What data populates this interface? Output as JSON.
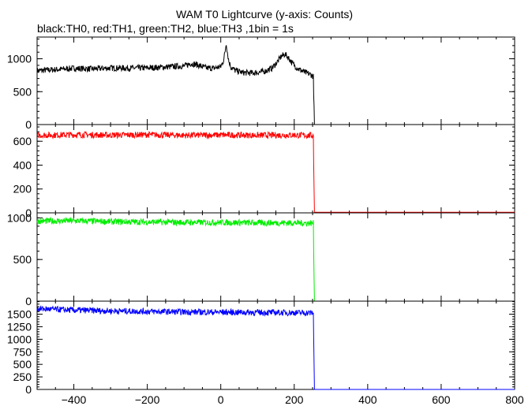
{
  "chart_data": {
    "type": "line",
    "title": "WAM T0 Lightcurve (y-axis: Counts)",
    "subtitle": "black:TH0, red:TH1, green:TH2, blue:TH3 ,1bin = 1s",
    "x_range": [
      -500,
      800
    ],
    "x_ticks": [
      -400,
      -200,
      0,
      200,
      400,
      600,
      800
    ],
    "x_tick_labels": [
      "−400",
      "−200",
      "0",
      "200",
      "400",
      "600",
      "800"
    ],
    "panels": [
      {
        "name": "TH0",
        "color": "#000000",
        "ylim": [
          0,
          1330
        ],
        "y_ticks": [
          0,
          500,
          1000
        ],
        "y_tick_labels": [
          "0",
          "500",
          "1000"
        ],
        "points": [
          [
            -500,
            820
          ],
          [
            -450,
            835
          ],
          [
            -400,
            855
          ],
          [
            -350,
            845
          ],
          [
            -300,
            860
          ],
          [
            -250,
            858
          ],
          [
            -200,
            860
          ],
          [
            -150,
            875
          ],
          [
            -100,
            890
          ],
          [
            -80,
            930
          ],
          [
            -60,
            900
          ],
          [
            -40,
            860
          ],
          [
            -20,
            855
          ],
          [
            0,
            880
          ],
          [
            8,
            980
          ],
          [
            12,
            1120
          ],
          [
            15,
            1240
          ],
          [
            18,
            1100
          ],
          [
            22,
            960
          ],
          [
            28,
            870
          ],
          [
            40,
            820
          ],
          [
            60,
            790
          ],
          [
            80,
            785
          ],
          [
            100,
            790
          ],
          [
            120,
            810
          ],
          [
            140,
            860
          ],
          [
            155,
            960
          ],
          [
            165,
            1040
          ],
          [
            175,
            1070
          ],
          [
            185,
            1010
          ],
          [
            195,
            930
          ],
          [
            210,
            850
          ],
          [
            230,
            790
          ],
          [
            245,
            760
          ],
          [
            252,
            730
          ],
          [
            255,
            0
          ],
          [
            800,
            0
          ]
        ]
      },
      {
        "name": "TH1",
        "color": "#ff0000",
        "ylim": [
          0,
          740
        ],
        "y_ticks": [
          0,
          200,
          400,
          600
        ],
        "y_tick_labels": [
          "0",
          "200",
          "400",
          "600"
        ],
        "points": [
          [
            -500,
            650
          ],
          [
            -400,
            655
          ],
          [
            -300,
            652
          ],
          [
            -200,
            655
          ],
          [
            -100,
            650
          ],
          [
            0,
            653
          ],
          [
            100,
            650
          ],
          [
            200,
            652
          ],
          [
            252,
            648
          ],
          [
            255,
            5
          ],
          [
            800,
            5
          ]
        ]
      },
      {
        "name": "TH2",
        "color": "#00ee00",
        "ylim": [
          0,
          1060
        ],
        "y_ticks": [
          0,
          500,
          1000
        ],
        "y_tick_labels": [
          "0",
          "500",
          "1000"
        ],
        "points": [
          [
            -500,
            960
          ],
          [
            -400,
            965
          ],
          [
            -300,
            955
          ],
          [
            -200,
            950
          ],
          [
            -100,
            945
          ],
          [
            0,
            945
          ],
          [
            100,
            940
          ],
          [
            200,
            940
          ],
          [
            252,
            935
          ],
          [
            255,
            0
          ],
          [
            800,
            0
          ]
        ]
      },
      {
        "name": "TH3",
        "color": "#0000ff",
        "ylim": [
          0,
          1760
        ],
        "y_ticks": [
          0,
          250,
          500,
          750,
          1000,
          1250,
          1500
        ],
        "y_tick_labels": [
          "0",
          "250",
          "500",
          "750",
          "1000",
          "1250",
          "1500"
        ],
        "points": [
          [
            -500,
            1610
          ],
          [
            -400,
            1580
          ],
          [
            -300,
            1565
          ],
          [
            -200,
            1555
          ],
          [
            -100,
            1545
          ],
          [
            0,
            1540
          ],
          [
            100,
            1535
          ],
          [
            200,
            1530
          ],
          [
            252,
            1525
          ],
          [
            255,
            0
          ],
          [
            800,
            0
          ]
        ]
      }
    ]
  }
}
